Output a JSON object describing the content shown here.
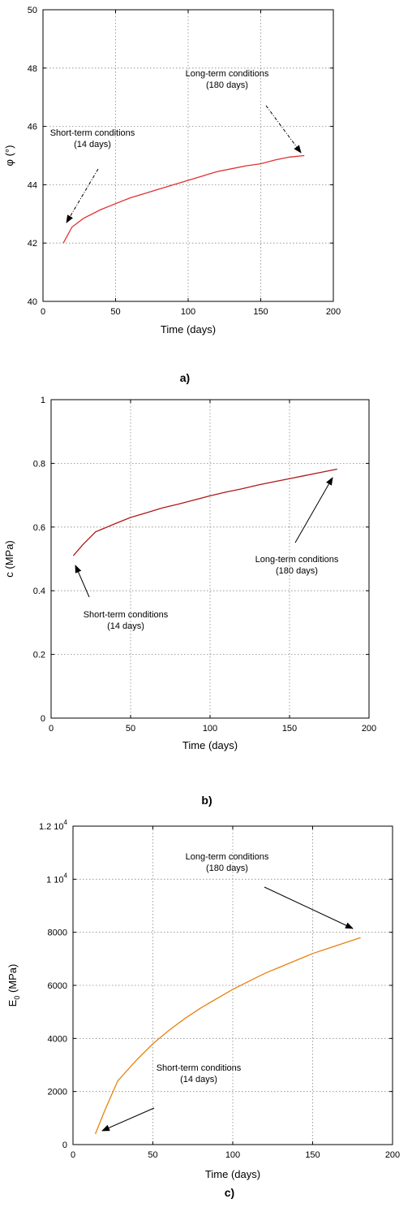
{
  "chart_data": [
    {
      "panel_label": "a)",
      "type": "line",
      "xlabel": "Time (days)",
      "ylabel": "φ (°)",
      "xlim": [
        0,
        200
      ],
      "ylim": [
        40,
        50
      ],
      "xticks": [
        "0",
        "50",
        "100",
        "150",
        "200"
      ],
      "yticks": [
        "40",
        "42",
        "44",
        "46",
        "48",
        "50"
      ],
      "grid": true,
      "line_color": "#e03030",
      "series": [
        {
          "x": [
            14,
            20,
            28,
            40,
            50,
            60,
            70,
            80,
            90,
            100,
            110,
            120,
            130,
            140,
            150,
            160,
            170,
            180
          ],
          "values": [
            42.0,
            42.55,
            42.85,
            43.15,
            43.35,
            43.55,
            43.7,
            43.85,
            44.0,
            44.15,
            44.3,
            44.45,
            44.55,
            44.65,
            44.72,
            44.85,
            44.95,
            45.0
          ]
        }
      ],
      "annotations": [
        {
          "text": [
            "Long-term conditions",
            "(180 days)"
          ]
        },
        {
          "text": [
            "Short-term conditions",
            "(14 days)"
          ]
        }
      ]
    },
    {
      "panel_label": "b)",
      "type": "line",
      "xlabel": "Time (days)",
      "ylabel": "c (MPa)",
      "xlim": [
        0,
        200
      ],
      "ylim": [
        0,
        1
      ],
      "xticks": [
        "0",
        "50",
        "100",
        "150",
        "200"
      ],
      "yticks": [
        "0",
        "0.2",
        "0.4",
        "0.6",
        "0.8",
        "1"
      ],
      "grid": true,
      "line_color": "#b01818",
      "series": [
        {
          "x": [
            14,
            20,
            28,
            40,
            50,
            60,
            70,
            80,
            90,
            100,
            110,
            120,
            130,
            140,
            150,
            160,
            170,
            180
          ],
          "values": [
            0.51,
            0.545,
            0.585,
            0.61,
            0.63,
            0.645,
            0.66,
            0.672,
            0.685,
            0.698,
            0.71,
            0.72,
            0.732,
            0.742,
            0.752,
            0.762,
            0.772,
            0.782
          ]
        }
      ],
      "annotations": [
        {
          "text": [
            "Long-term conditions",
            "(180 days)"
          ]
        },
        {
          "text": [
            "Short-term conditions",
            "(14 days)"
          ]
        }
      ]
    },
    {
      "panel_label": "c)",
      "type": "line",
      "xlabel": "Time (days)",
      "ylabel": "E0 (MPa)",
      "xlim": [
        0,
        200
      ],
      "ylim": [
        0,
        12000
      ],
      "xticks": [
        "0",
        "50",
        "100",
        "150",
        "200"
      ],
      "yticks": [
        "0",
        "2000",
        "4000",
        "6000",
        "8000",
        "1 10^4",
        "1.2 10^4"
      ],
      "grid": true,
      "line_color": "#e8820e",
      "series": [
        {
          "x": [
            14,
            20,
            28,
            40,
            50,
            60,
            70,
            80,
            90,
            100,
            110,
            120,
            130,
            140,
            150,
            160,
            170,
            180
          ],
          "values": [
            400,
            1300,
            2400,
            3200,
            3800,
            4300,
            4750,
            5150,
            5500,
            5850,
            6150,
            6450,
            6700,
            6950,
            7200,
            7400,
            7600,
            7800
          ]
        }
      ],
      "annotations": [
        {
          "text": [
            "Long-term conditions",
            "(180 days)"
          ]
        },
        {
          "text": [
            "Short-term conditions",
            "(14 days)"
          ]
        }
      ]
    }
  ]
}
